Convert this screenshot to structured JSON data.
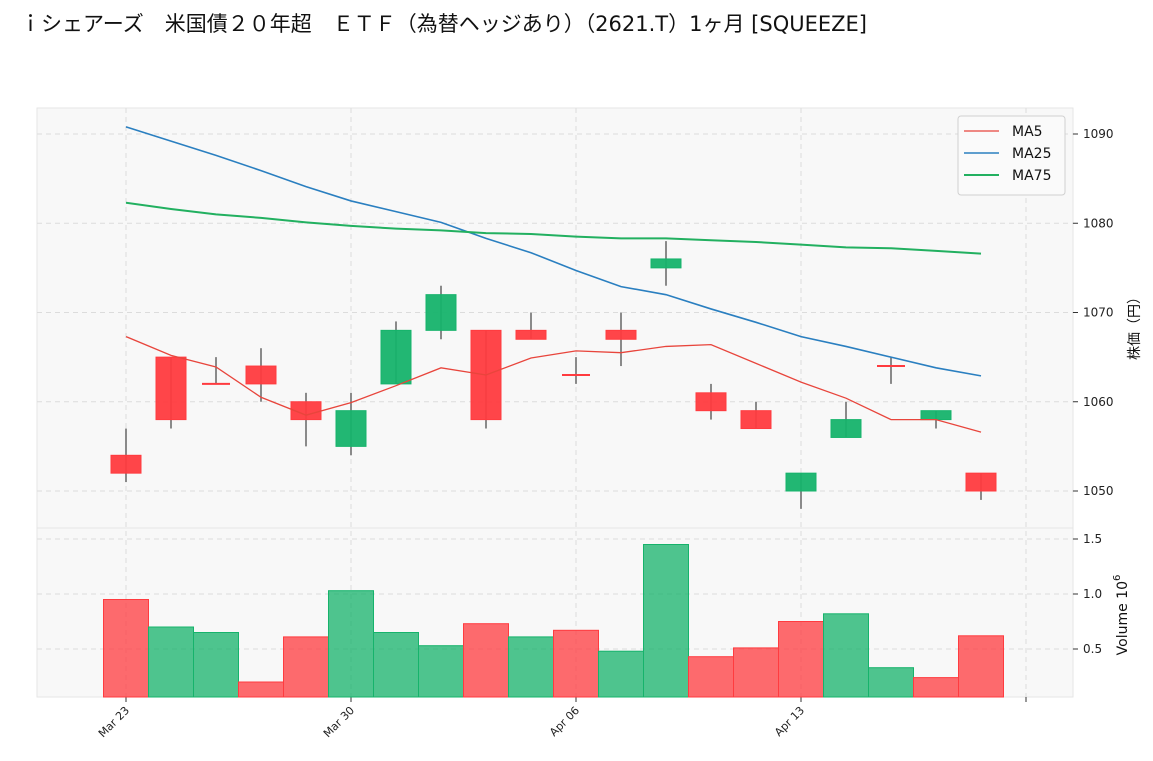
{
  "title": "ｉシェアーズ　米国債２０年超　ＥＴＦ（為替ヘッジあり）（2621.T）1ヶ月 [SQUEEZE]",
  "colors": {
    "up": "#16b36b",
    "down": "#ff3b3f",
    "wick": "#666666",
    "ma5": "#e8453c",
    "ma25": "#2a7fc0",
    "ma75": "#22b060",
    "background": "#f8f8f8"
  },
  "chart_data": {
    "type": "candlestick",
    "title": "ｉシェアーズ　米国債２０年超　ＥＴＦ（為替ヘッジあり）（2621.T）1ヶ月 [SQUEEZE]",
    "ylabel": "株価（円）",
    "volume_label": "Volume",
    "volume_exponent": "6",
    "ylim": [
      1046,
      1094
    ],
    "volume_ylim": [
      0,
      1.65
    ],
    "yticks": [
      "1050",
      "1060",
      "1070",
      "1080",
      "1090"
    ],
    "volume_yticks": [
      "0.5",
      "1.0",
      "1.5"
    ],
    "xticks": [
      {
        "index": 0,
        "label": "Mar 23"
      },
      {
        "index": 5,
        "label": "Mar 30"
      },
      {
        "index": 10,
        "label": "Apr 06"
      },
      {
        "index": 15,
        "label": "Apr 13"
      },
      {
        "index": 20,
        "label": ""
      }
    ],
    "legend": {
      "placement": "top-right",
      "entries": [
        "MA5",
        "MA25",
        "MA75"
      ]
    },
    "candles": [
      {
        "o": 1054,
        "h": 1057,
        "l": 1051,
        "c": 1052
      },
      {
        "o": 1065,
        "h": 1065,
        "l": 1057,
        "c": 1058
      },
      {
        "o": 1062,
        "h": 1065,
        "l": 1062,
        "c": 1062
      },
      {
        "o": 1064,
        "h": 1066,
        "l": 1060,
        "c": 1062
      },
      {
        "o": 1060,
        "h": 1061,
        "l": 1055,
        "c": 1058
      },
      {
        "o": 1055,
        "h": 1061,
        "l": 1054,
        "c": 1059
      },
      {
        "o": 1062,
        "h": 1069,
        "l": 1062,
        "c": 1068
      },
      {
        "o": 1068,
        "h": 1073,
        "l": 1067,
        "c": 1072
      },
      {
        "o": 1068,
        "h": 1068,
        "l": 1057,
        "c": 1058
      },
      {
        "o": 1068,
        "h": 1070,
        "l": 1067,
        "c": 1067
      },
      {
        "o": 1063,
        "h": 1065,
        "l": 1062,
        "c": 1063
      },
      {
        "o": 1068,
        "h": 1070,
        "l": 1064,
        "c": 1067
      },
      {
        "o": 1075,
        "h": 1078,
        "l": 1073,
        "c": 1076
      },
      {
        "o": 1061,
        "h": 1062,
        "l": 1058,
        "c": 1059
      },
      {
        "o": 1059,
        "h": 1060,
        "l": 1057,
        "c": 1057
      },
      {
        "o": 1050,
        "h": 1052,
        "l": 1048,
        "c": 1052
      },
      {
        "o": 1056,
        "h": 1060,
        "l": 1056,
        "c": 1058
      },
      {
        "o": 1064,
        "h": 1065,
        "l": 1062,
        "c": 1064
      },
      {
        "o": 1058,
        "h": 1059,
        "l": 1057,
        "c": 1059
      },
      {
        "o": 1052,
        "h": 1052,
        "l": 1049,
        "c": 1050
      }
    ],
    "doji_color_down": [
      2,
      10,
      17
    ],
    "volume": [
      0.95,
      0.7,
      0.65,
      0.2,
      0.61,
      1.03,
      0.65,
      0.53,
      0.73,
      0.61,
      0.67,
      0.48,
      1.45,
      0.43,
      0.51,
      0.75,
      0.82,
      0.33,
      0.24,
      0.62
    ],
    "volume_up": [
      false,
      true,
      true,
      false,
      false,
      true,
      true,
      true,
      false,
      true,
      false,
      true,
      true,
      false,
      false,
      false,
      true,
      true,
      false,
      false
    ],
    "series": [
      {
        "name": "MA5",
        "values": [
          1067.3,
          1065.2,
          1063.9,
          1060.5,
          1058.5,
          1059.9,
          1061.8,
          1063.8,
          1063.0,
          1064.9,
          1065.7,
          1065.5,
          1066.2,
          1066.4,
          1064.3,
          1062.2,
          1060.4,
          1058.0,
          1058.0,
          1056.6
        ]
      },
      {
        "name": "MA25",
        "values": [
          1090.8,
          1089.2,
          1087.6,
          1085.9,
          1084.1,
          1082.5,
          1081.3,
          1080.1,
          1078.3,
          1076.7,
          1074.7,
          1072.9,
          1072.0,
          1070.4,
          1068.9,
          1067.3,
          1066.2,
          1065.0,
          1063.8,
          1062.9
        ]
      },
      {
        "name": "MA75",
        "values": [
          1082.3,
          1081.6,
          1081.0,
          1080.6,
          1080.1,
          1079.7,
          1079.4,
          1079.2,
          1078.9,
          1078.8,
          1078.5,
          1078.3,
          1078.3,
          1078.1,
          1077.9,
          1077.6,
          1077.3,
          1077.2,
          1076.9,
          1076.6
        ]
      }
    ]
  }
}
